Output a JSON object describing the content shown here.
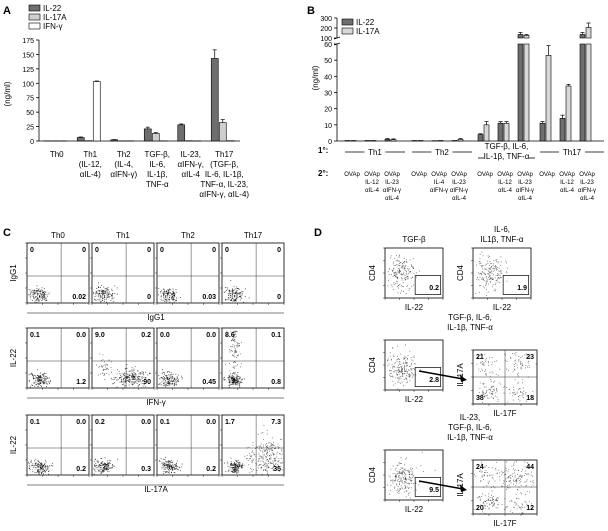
{
  "panels": {
    "A": {
      "letter": "A",
      "ylabel": "(ng/ml)",
      "yticks": [
        "0",
        "25",
        "50",
        "75",
        "100",
        "125",
        "150",
        "175"
      ],
      "legend": [
        "IL-22",
        "IL-17A",
        "IFN-γ"
      ],
      "groups": [
        {
          "lines": [
            "Th0"
          ]
        },
        {
          "lines": [
            "Th1",
            "(IL-12,",
            "αIL-4)"
          ]
        },
        {
          "lines": [
            "Th2",
            "(IL-4,",
            "αIFN-γ)"
          ]
        },
        {
          "lines": [
            "TGF-β,",
            "IL-6,",
            "IL-1β,",
            "TNF-α"
          ]
        },
        {
          "lines": [
            "IL-23,",
            "αIFN-γ,",
            "αIL-4"
          ]
        },
        {
          "lines": [
            "Th17",
            "(TGF-β,",
            "IL-6, IL-1β,",
            "TNF-α, IL-23,",
            "αIFN-γ, αIL-4)"
          ]
        }
      ]
    },
    "B": {
      "letter": "B",
      "ylabel": "(ng/ml)",
      "yticks_low": [
        "0",
        "10",
        "20",
        "30",
        "40",
        "50",
        "60"
      ],
      "yticks_high": [
        "100",
        "200",
        "300"
      ],
      "legend": [
        "IL-22",
        "IL-17A"
      ],
      "primary_label": "1°:",
      "secondary_label": "2°:",
      "primary_groups": [
        "Th1",
        "Th2",
        "TGF-β, IL-6,|IL-1β, TNF-α",
        "Th17"
      ],
      "secondary_conditions": [
        [
          "OVAp"
        ],
        [
          "OVAp",
          "IL-12",
          "αIL-4"
        ],
        [
          "OVAp",
          "IL-23",
          "αIFN-γ",
          "αIL-4"
        ],
        [
          "OVAp"
        ],
        [
          "OVAp",
          "IL-4",
          "αIFN-γ"
        ],
        [
          "OVAp",
          "IL-23",
          "αIFN-γ",
          "αIL-4"
        ],
        [
          "OVAp"
        ],
        [
          "OVAp",
          "IL-12",
          "αIL-4"
        ],
        [
          "OVAp",
          "IL-23",
          "αIFN-γ",
          "αIL-4"
        ],
        [
          "OVAp"
        ],
        [
          "OVAp",
          "IL-12",
          "αIL-4"
        ],
        [
          "OVAp",
          "IL-23",
          "αIFN-γ",
          "αIL-4"
        ]
      ]
    },
    "C": {
      "letter": "C",
      "columns": [
        "Th0",
        "Th1",
        "Th2",
        "Th17"
      ],
      "rows": [
        {
          "ylabel": "IgG1",
          "xlabel": "IgG1",
          "quadrants": [
            [
              "0",
              "0",
              "100",
              "0.02"
            ],
            [
              "0",
              "0",
              "100",
              "0"
            ],
            [
              "0",
              "0",
              "100",
              "0.03"
            ],
            [
              "0",
              "0",
              "100",
              "0"
            ]
          ]
        },
        {
          "ylabel": "IL-22",
          "xlabel": "IFN-γ",
          "quadrants": [
            [
              "0.1",
              "0.0",
              "99",
              "1.2"
            ],
            [
              "9.0",
              "0.2",
              "",
              "90"
            ],
            [
              "0.0",
              "0.0",
              "99",
              "0.45"
            ],
            [
              "8.6",
              "0.1",
              "91",
              "0.8"
            ]
          ]
        },
        {
          "ylabel": "IL-22",
          "xlabel": "IL-17A",
          "quadrants": [
            [
              "0.1",
              "0.0",
              "99",
              "0.2"
            ],
            [
              "0.2",
              "0.0",
              "99",
              "0.3"
            ],
            [
              "0.1",
              "0.0",
              "99",
              "0.2"
            ],
            [
              "1.7",
              "7.3",
              "56",
              "35"
            ]
          ]
        }
      ]
    },
    "D": {
      "letter": "D",
      "top_titles": [
        "TGF-β",
        "IL-6,|IL1β, TNF-α"
      ],
      "top_values": [
        "0.2",
        "1.9"
      ],
      "mid_title": [
        "TGF-β, IL-6,",
        "IL-1β, TNF-α"
      ],
      "mid_gate": "2.8",
      "mid_quadrants": [
        "21",
        "23",
        "38",
        "18"
      ],
      "bot_title": [
        "IL-23,",
        "TGF-β, IL-6,",
        "IL-1β, TNF-α"
      ],
      "bot_gate": "9.5",
      "bot_quadrants": [
        "24",
        "44",
        "20",
        "12"
      ],
      "cd4_label": "CD4",
      "il22_label": "IL-22",
      "il17a_label": "IL-17A",
      "il17f_label": "IL-17F"
    }
  },
  "chart_data": [
    {
      "type": "bar",
      "title": "",
      "ylabel": "(ng/ml)",
      "ylim": [
        0,
        175
      ],
      "categories": [
        "Th0",
        "Th1 (IL-12, αIL-4)",
        "Th2 (IL-4, αIFN-γ)",
        "TGF-β, IL-6, IL-1β, TNF-α",
        "IL-23, αIFN-γ, αIL-4",
        "Th17 (TGF-β, IL-6, IL-1β, TNF-α, IL-23, αIFN-γ, αIL-4)"
      ],
      "series": [
        {
          "name": "IL-22",
          "color": "#6e6e6e",
          "values": [
            0.3,
            6,
            2,
            21,
            28,
            143
          ],
          "errors": [
            0,
            1,
            0.5,
            3,
            1.5,
            15
          ]
        },
        {
          "name": "IL-17A",
          "color": "#cfcfcf",
          "values": [
            0.3,
            0.5,
            0.3,
            13,
            0.5,
            32
          ],
          "errors": [
            0,
            0,
            0,
            1.5,
            0,
            5
          ]
        },
        {
          "name": "IFN-γ",
          "color": "#ffffff",
          "values": [
            0.3,
            103,
            0.3,
            0.3,
            0.3,
            0.5
          ],
          "errors": [
            0,
            1,
            0,
            0,
            0,
            0
          ]
        }
      ],
      "grid": false,
      "legend": "top-left"
    },
    {
      "type": "bar",
      "title": "",
      "ylabel": "(ng/ml)",
      "ylim": [
        0,
        300
      ],
      "axis_break": [
        60,
        100
      ],
      "categories": [
        "Th1 / OVAp",
        "Th1 / OVAp IL-12 αIL-4",
        "Th1 / OVAp IL-23 αIFN-γ αIL-4",
        "Th2 / OVAp",
        "Th2 / OVAp IL-4 αIFN-γ",
        "Th2 / OVAp IL-23 αIFN-γ αIL-4",
        "TGF-β, IL-6, IL-1β, TNF-α / OVAp",
        "TGF-β, IL-6, IL-1β, TNF-α / OVAp IL-12 αIL-4",
        "TGF-β, IL-6, IL-1β, TNF-α / OVAp IL-23 αIFN-γ αIL-4",
        "Th17 / OVAp",
        "Th17 / OVAp IL-12 αIL-4",
        "Th17 / OVAp IL-23 αIFN-γ αIL-4"
      ],
      "series": [
        {
          "name": "IL-22",
          "color": "#6e6e6e",
          "values": [
            0.3,
            0.3,
            1,
            0.3,
            0.2,
            0.3,
            4,
            11,
            135,
            11,
            14,
            135
          ],
          "errors": [
            0,
            0,
            0.5,
            0,
            0,
            0,
            0.5,
            1,
            20,
            1,
            2,
            20
          ]
        },
        {
          "name": "IL-17A",
          "color": "#d8d8d8",
          "values": [
            0.3,
            0.3,
            0.8,
            0.3,
            0.3,
            1,
            10,
            11,
            125,
            53,
            34,
            205
          ],
          "errors": [
            0,
            0,
            0.5,
            0,
            0,
            0.5,
            2,
            1,
            10,
            6,
            1,
            45
          ]
        }
      ],
      "grid": false,
      "legend": "top-left"
    }
  ]
}
